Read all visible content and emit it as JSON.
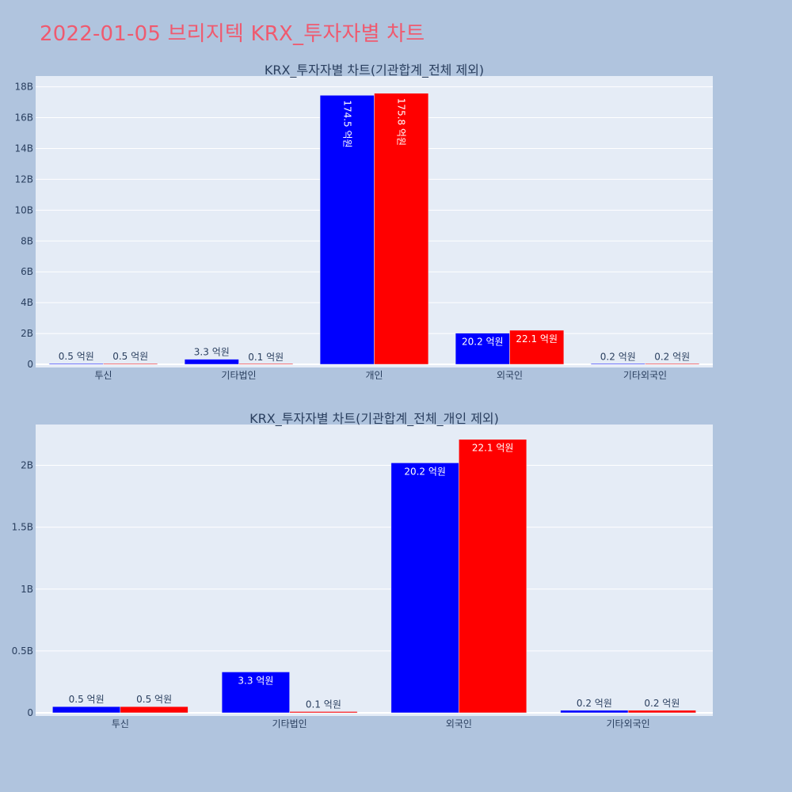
{
  "figure": {
    "title": "2022-01-05 브리지텍 KRX_투자자별 차트"
  },
  "colors": {
    "series1": "#0000ff",
    "series2": "#ff0000",
    "plot_bg": "#e5ecf6",
    "page_bg": "#b0c4de",
    "title": "#ef5a6f"
  },
  "chart_data": [
    {
      "type": "bar",
      "title": "KRX_투자자별 차트(기관합계_전체 제외)",
      "categories": [
        "투신",
        "기타법인",
        "개인",
        "외국인",
        "기타외국인"
      ],
      "series": [
        {
          "values": [
            50000000,
            330000000,
            17450000000,
            2020000000,
            20000000
          ],
          "labels": [
            "0.5 억원",
            "3.3 억원",
            "174.5 억원",
            "20.2 억원",
            "0.2 억원"
          ]
        },
        {
          "values": [
            50000000,
            10000000,
            17580000000,
            2210000000,
            20000000
          ],
          "labels": [
            "0.5 억원",
            "0.1 억원",
            "175.8 억원",
            "22.1 억원",
            "0.2 억원"
          ]
        }
      ],
      "ylim": [
        0,
        18700000000
      ],
      "yticks": [
        0,
        2000000000,
        4000000000,
        6000000000,
        8000000000,
        10000000000,
        12000000000,
        14000000000,
        16000000000,
        18000000000
      ],
      "ytick_labels": [
        "0",
        "2B",
        "4B",
        "6B",
        "8B",
        "10B",
        "12B",
        "14B",
        "16B",
        "18B"
      ],
      "grid": true,
      "xlabel": "",
      "ylabel": ""
    },
    {
      "type": "bar",
      "title": "KRX_투자자별 차트(기관합계_전체_개인 제외)",
      "categories": [
        "투신",
        "기타법인",
        "외국인",
        "기타외국인"
      ],
      "series": [
        {
          "values": [
            50000000,
            330000000,
            2020000000,
            20000000
          ],
          "labels": [
            "0.5 억원",
            "3.3 억원",
            "20.2 억원",
            "0.2 억원"
          ]
        },
        {
          "values": [
            50000000,
            10000000,
            2210000000,
            20000000
          ],
          "labels": [
            "0.5 억원",
            "0.1 억원",
            "22.1 억원",
            "0.2 억원"
          ]
        }
      ],
      "ylim": [
        0,
        2330000000
      ],
      "yticks": [
        0,
        500000000,
        1000000000,
        1500000000,
        2000000000
      ],
      "ytick_labels": [
        "0",
        "0.5B",
        "1B",
        "1.5B",
        "2B"
      ],
      "grid": true,
      "xlabel": "",
      "ylabel": ""
    }
  ]
}
